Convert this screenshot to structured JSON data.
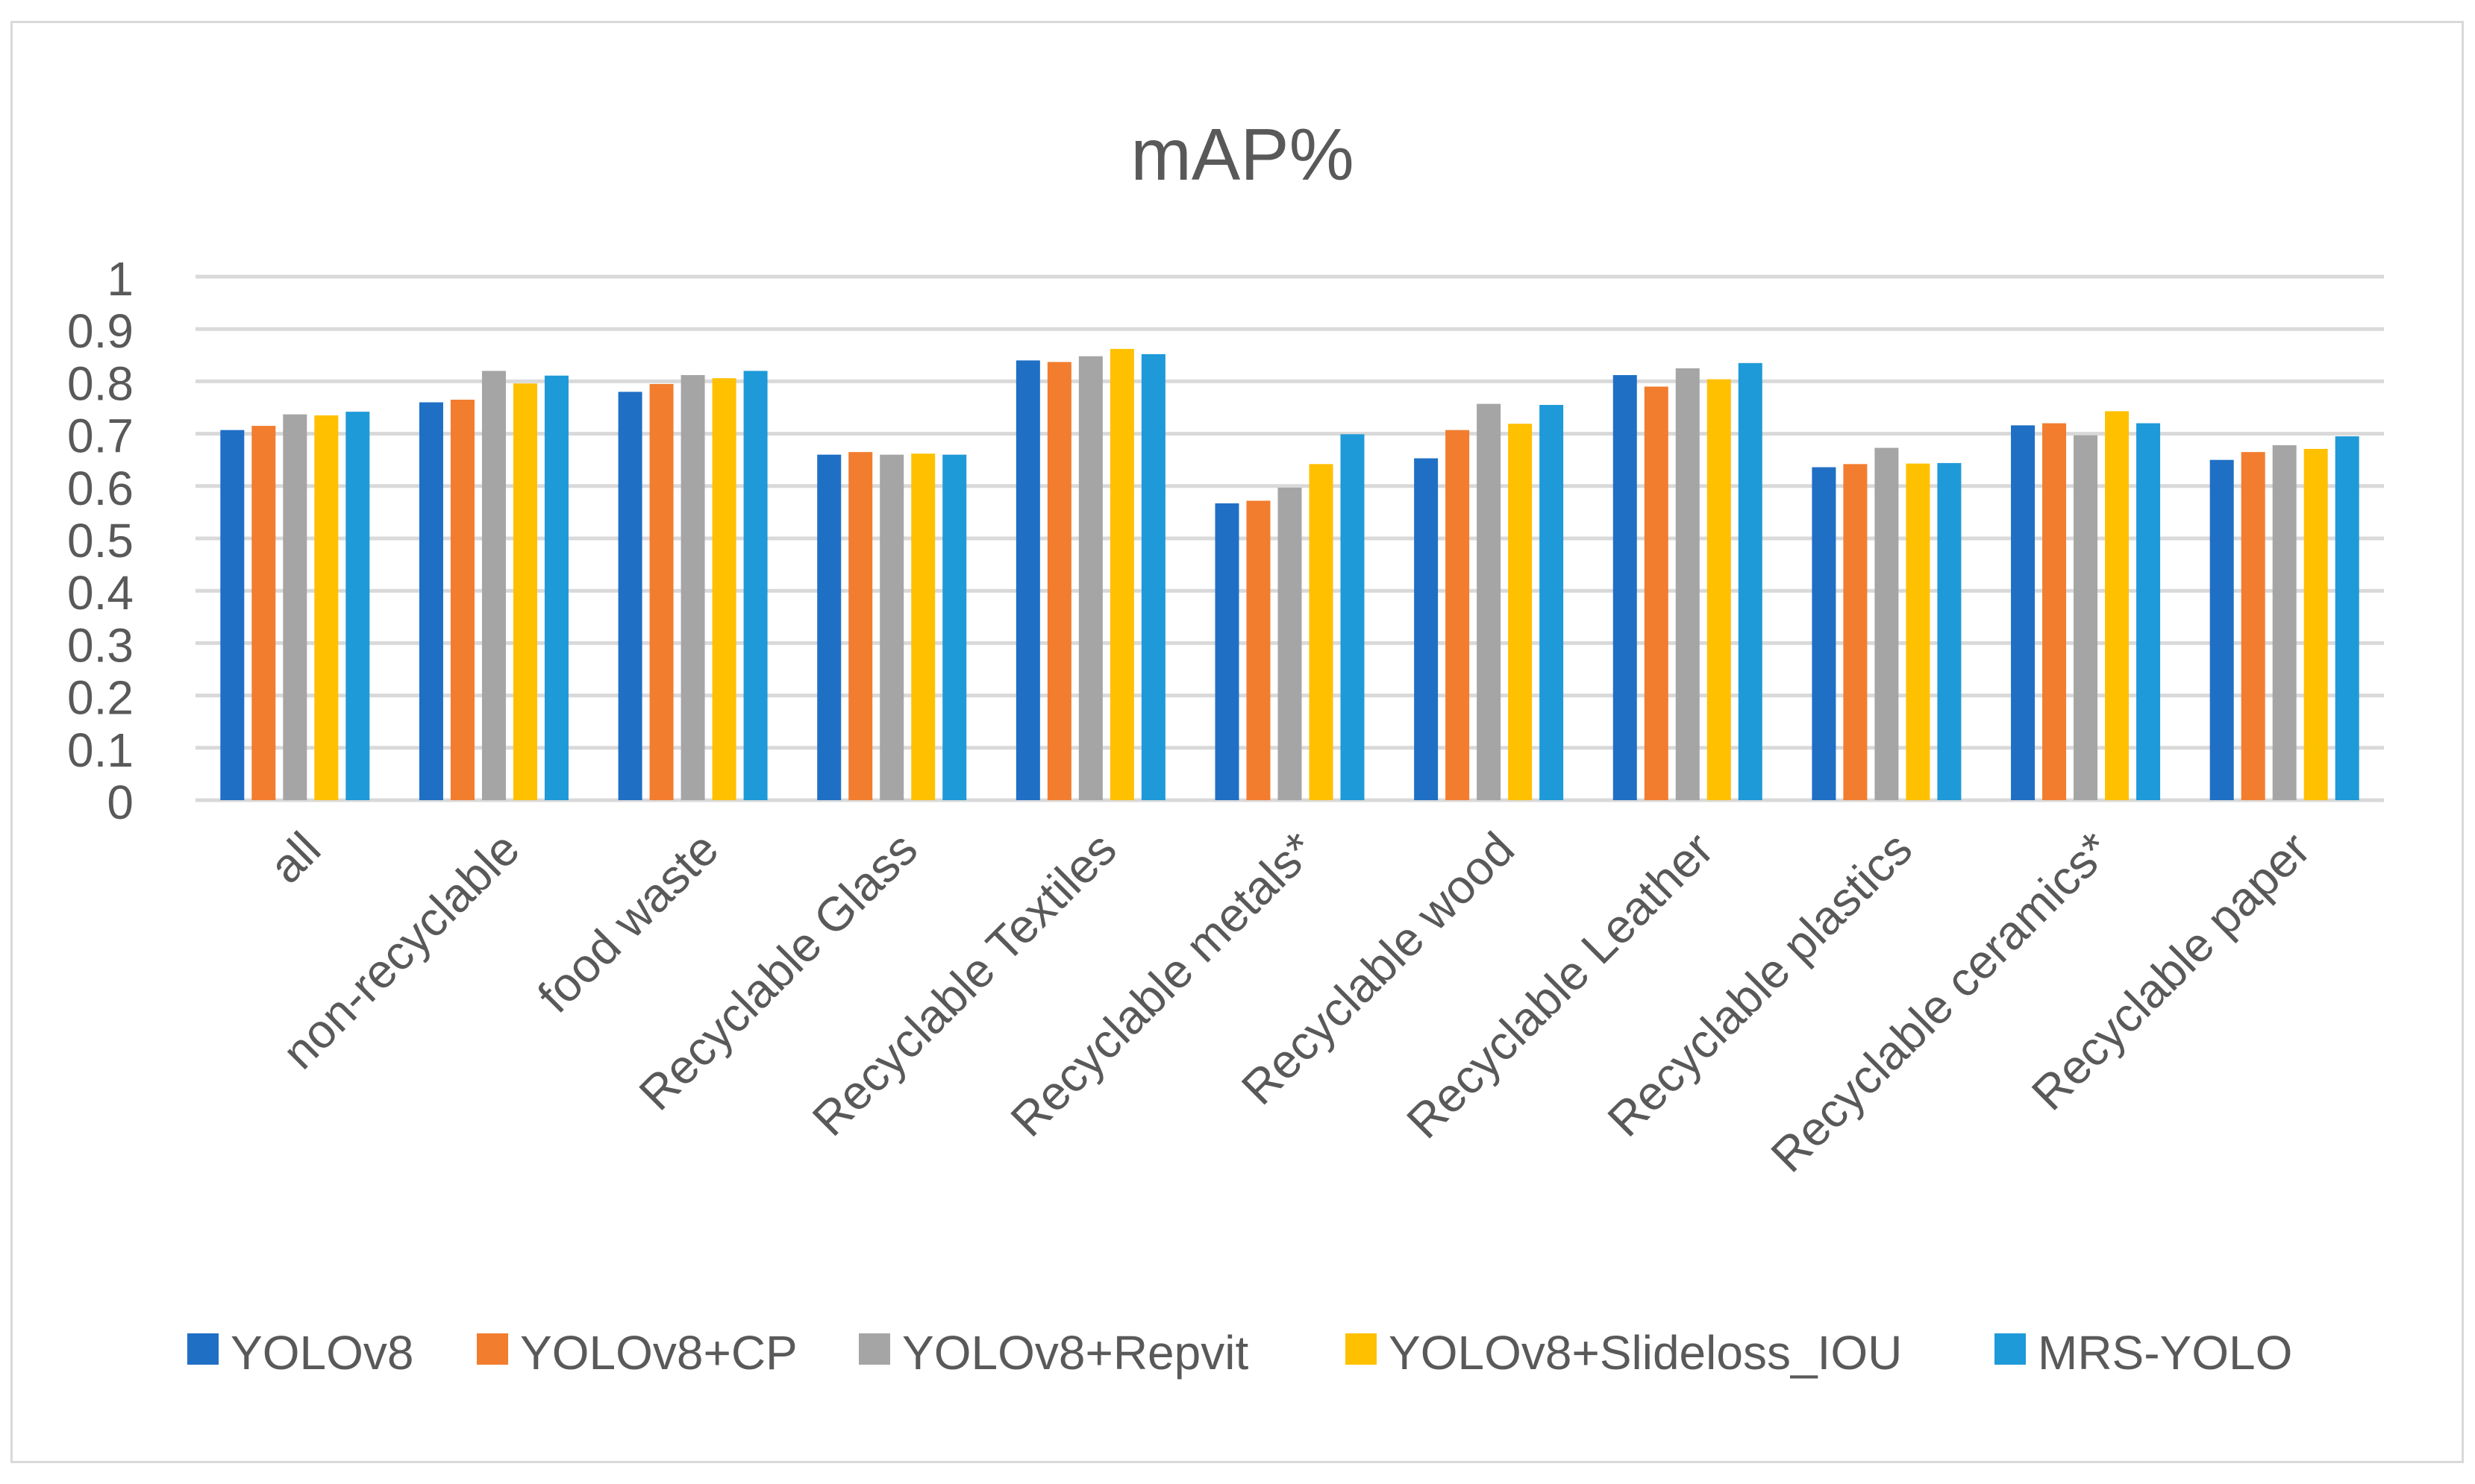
{
  "chart_data": {
    "type": "bar",
    "title": "mAP%",
    "xlabel": "",
    "ylabel": "",
    "ylim": [
      0,
      1
    ],
    "yticks": [
      "0",
      "0.1",
      "0.2",
      "0.3",
      "0.4",
      "0.5",
      "0.6",
      "0.7",
      "0.8",
      "0.9",
      "1"
    ],
    "grid": true,
    "legend_position": "bottom",
    "categories": [
      "all",
      "non-recyclable",
      "food waste",
      "Recyclable Glass",
      "Recyclable Textiles",
      "Recyclable metals*",
      "Recyclable wood",
      "Recyclable Leather",
      "Recyclable plastics",
      "Recyclable ceramics*",
      "Recyclable paper"
    ],
    "series": [
      {
        "name": "YOLOv8",
        "color": "#1f6fc5",
        "values": [
          0.707,
          0.76,
          0.78,
          0.66,
          0.84,
          0.567,
          0.653,
          0.812,
          0.636,
          0.716,
          0.65
        ]
      },
      {
        "name": "YOLOv8+CP",
        "color": "#f27d2f",
        "values": [
          0.715,
          0.765,
          0.795,
          0.665,
          0.837,
          0.572,
          0.707,
          0.79,
          0.642,
          0.72,
          0.665
        ]
      },
      {
        "name": "YOLOv8+Repvit",
        "color": "#a5a5a5",
        "values": [
          0.737,
          0.82,
          0.812,
          0.66,
          0.848,
          0.597,
          0.757,
          0.825,
          0.673,
          0.697,
          0.678
        ]
      },
      {
        "name": "YOLOv8+Slideloss_IOU",
        "color": "#ffc000",
        "values": [
          0.735,
          0.796,
          0.806,
          0.662,
          0.862,
          0.642,
          0.719,
          0.804,
          0.643,
          0.743,
          0.671
        ]
      },
      {
        "name": "MRS-YOLO",
        "color": "#1e9ad8",
        "values": [
          0.742,
          0.811,
          0.82,
          0.66,
          0.852,
          0.699,
          0.755,
          0.835,
          0.644,
          0.72,
          0.695
        ]
      }
    ]
  }
}
